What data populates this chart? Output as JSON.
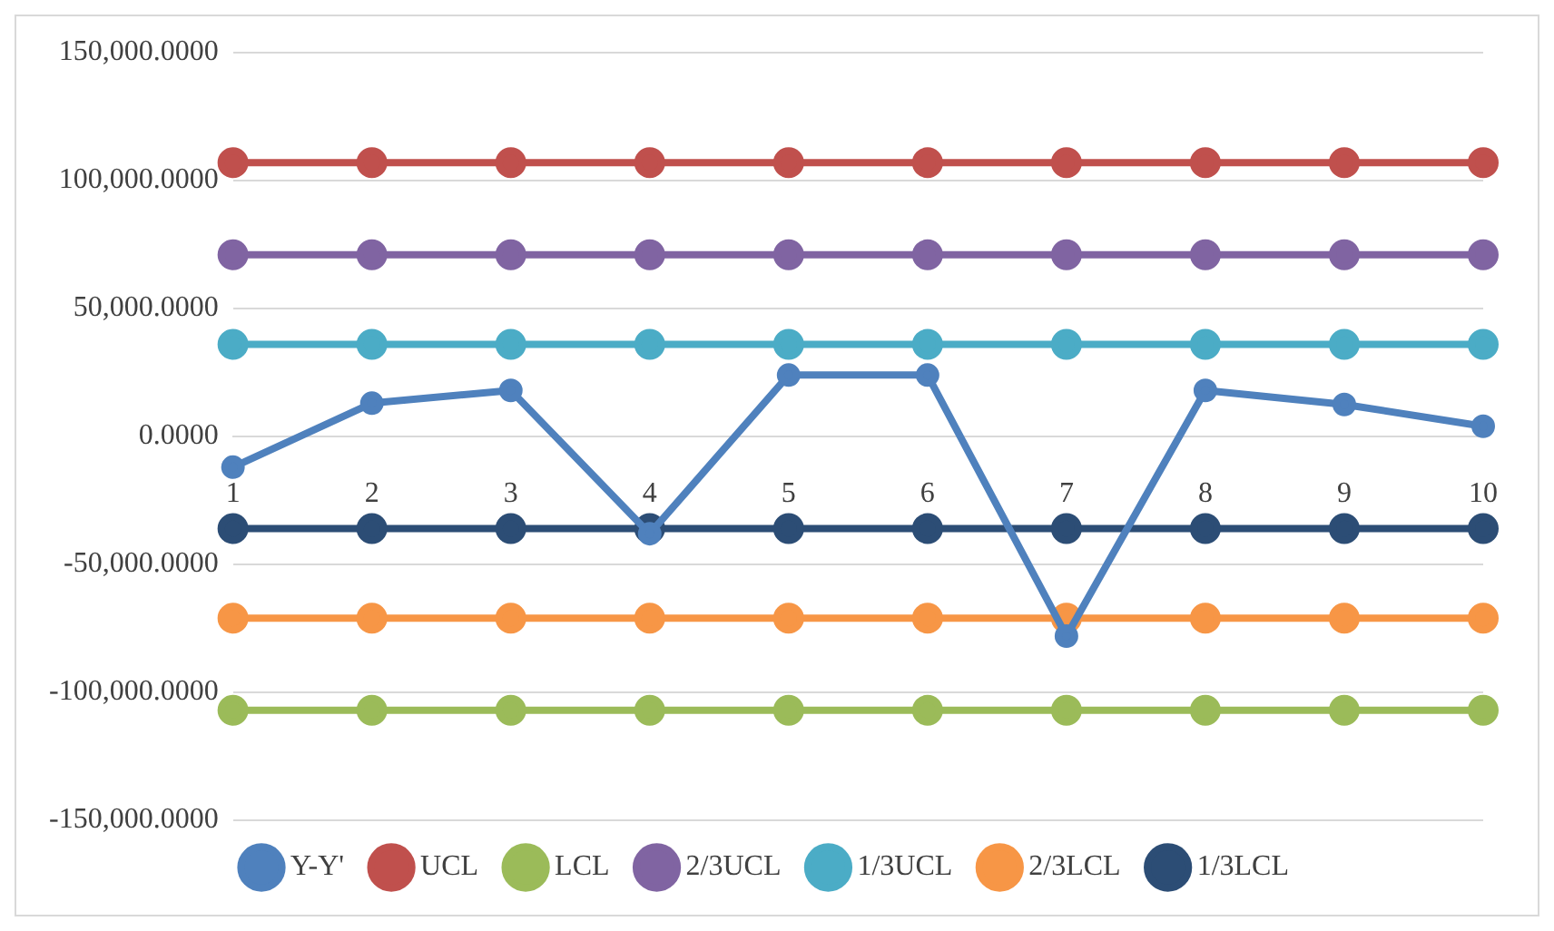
{
  "chart_data": {
    "type": "line",
    "categories": [
      "1",
      "2",
      "3",
      "4",
      "5",
      "6",
      "7",
      "8",
      "9",
      "10"
    ],
    "series": [
      {
        "name": "Y-Y'",
        "color": "#4f81bd",
        "values": [
          -12000,
          13000,
          18000,
          -38000,
          24000,
          24000,
          -78000,
          18000,
          12500,
          4000
        ]
      },
      {
        "name": "UCL",
        "color": "#c0504d",
        "values": [
          107000,
          107000,
          107000,
          107000,
          107000,
          107000,
          107000,
          107000,
          107000,
          107000
        ]
      },
      {
        "name": "LCL",
        "color": "#9bbb59",
        "values": [
          -107000,
          -107000,
          -107000,
          -107000,
          -107000,
          -107000,
          -107000,
          -107000,
          -107000,
          -107000
        ]
      },
      {
        "name": "2/3UCL",
        "color": "#8064a2",
        "values": [
          71000,
          71000,
          71000,
          71000,
          71000,
          71000,
          71000,
          71000,
          71000,
          71000
        ]
      },
      {
        "name": "1/3UCL",
        "color": "#4bacc6",
        "values": [
          36000,
          36000,
          36000,
          36000,
          36000,
          36000,
          36000,
          36000,
          36000,
          36000
        ]
      },
      {
        "name": "2/3LCL",
        "color": "#f79646",
        "values": [
          -71000,
          -71000,
          -71000,
          -71000,
          -71000,
          -71000,
          -71000,
          -71000,
          -71000,
          -71000
        ]
      },
      {
        "name": "1/3LCL",
        "color": "#2c4d75",
        "values": [
          -36000,
          -36000,
          -36000,
          -36000,
          -36000,
          -36000,
          -36000,
          -36000,
          -36000,
          -36000
        ]
      }
    ],
    "ylim": [
      -150000,
      150000
    ],
    "yticks": [
      {
        "value": -150000,
        "label": "-150,000.0000"
      },
      {
        "value": -100000,
        "label": "-100,000.0000"
      },
      {
        "value": -50000,
        "label": "-50,000.0000"
      },
      {
        "value": 0,
        "label": "0.0000"
      },
      {
        "value": 50000,
        "label": "50,000.0000"
      },
      {
        "value": 100000,
        "label": "100,000.0000"
      },
      {
        "value": 150000,
        "label": "150,000.0000"
      }
    ],
    "grid": "y",
    "legend": "bottom",
    "marker": "circle",
    "line_style": "solid"
  }
}
